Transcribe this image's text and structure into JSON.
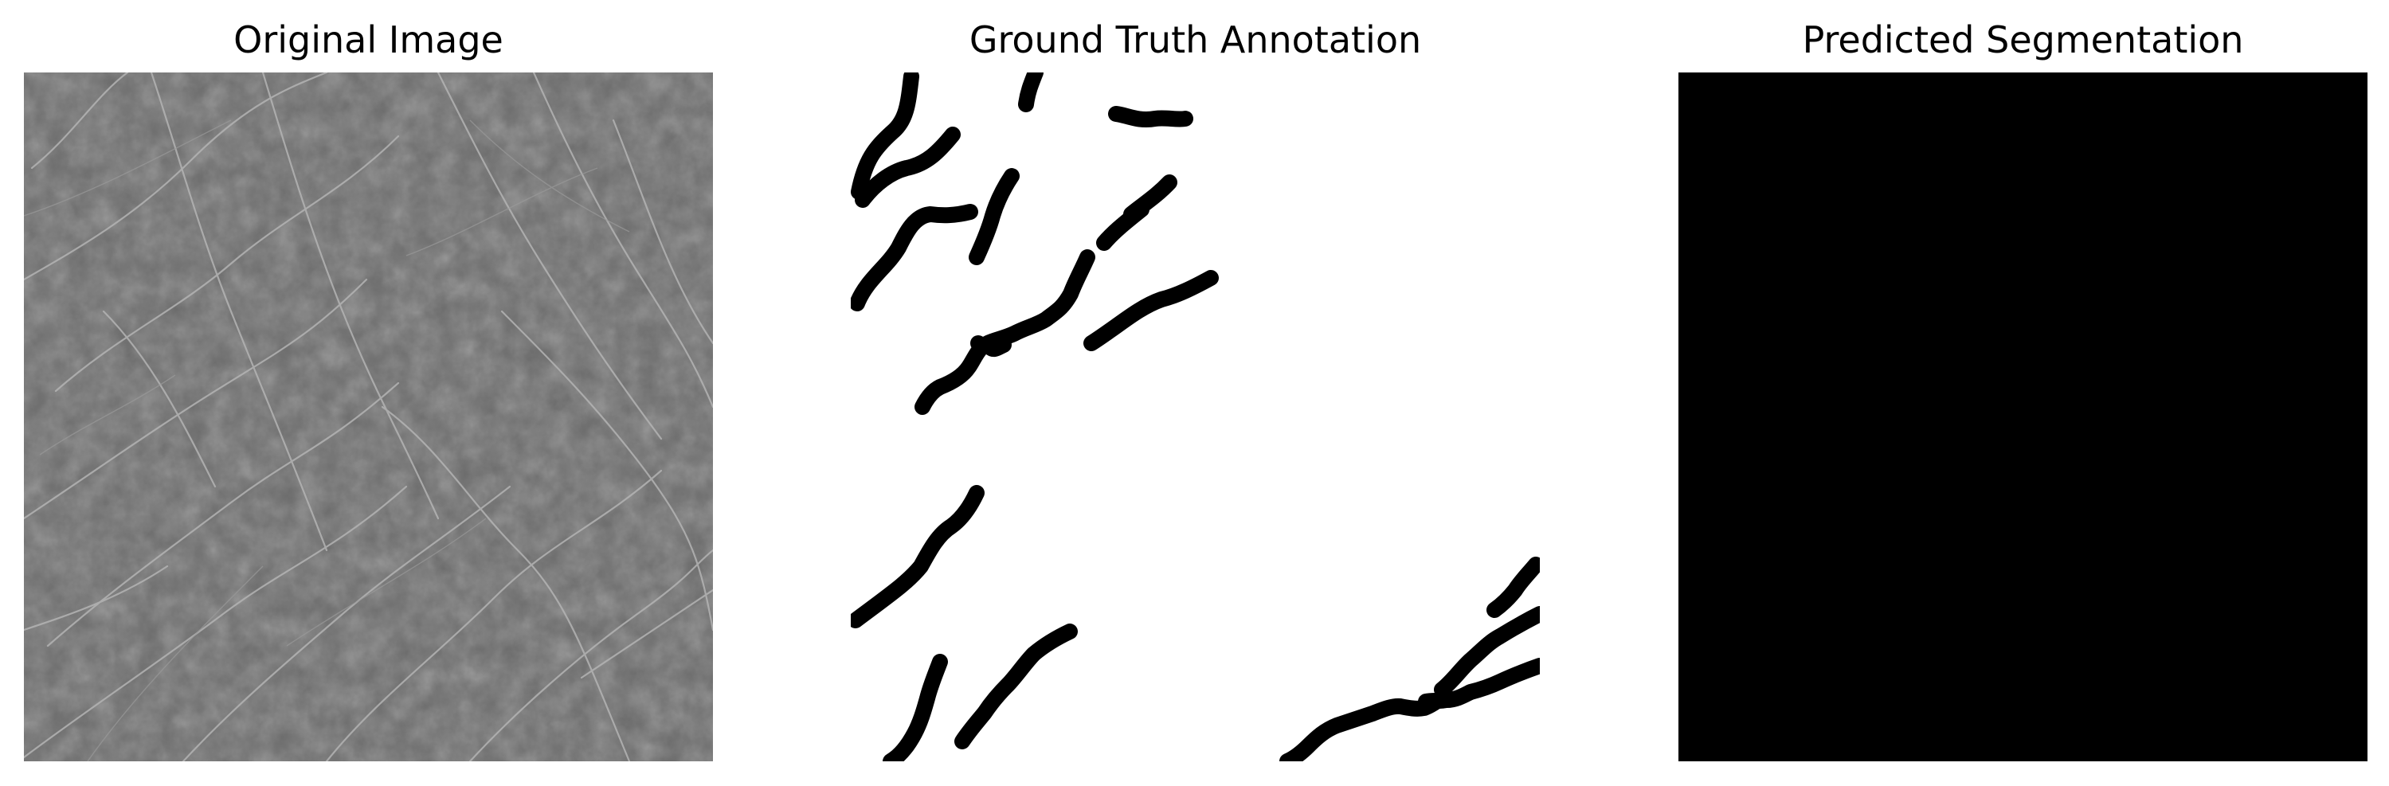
{
  "figure": {
    "panels": [
      {
        "title": "Original Image"
      },
      {
        "title": "Ground Truth Annotation"
      },
      {
        "title": "Predicted Segmentation"
      }
    ]
  },
  "colors": {
    "background": "#ffffff",
    "texture_base": "#6a6a6a",
    "texture_crack": "#b4b4b4",
    "annotation_stroke": "#000000",
    "prediction_fill": "#000000"
  }
}
